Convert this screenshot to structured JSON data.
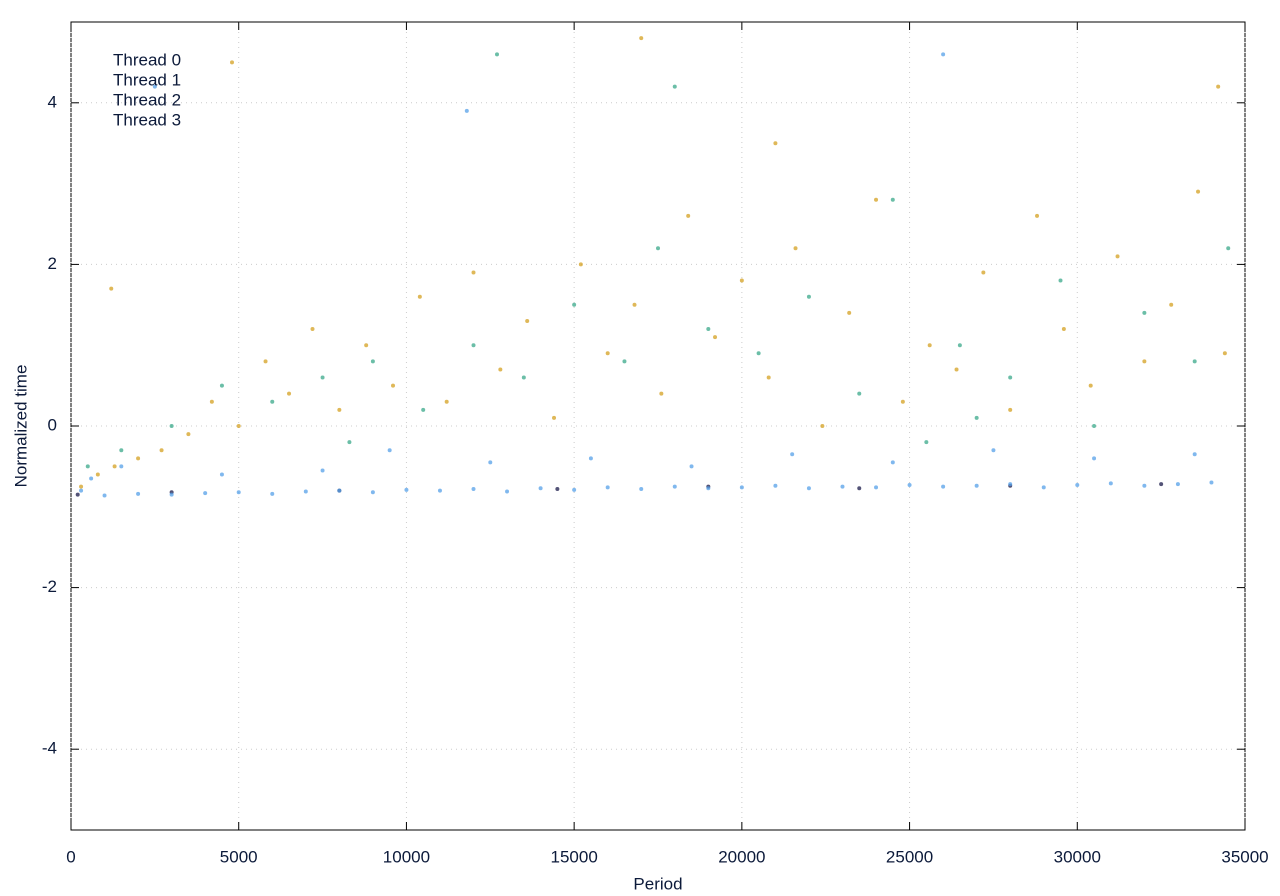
{
  "chart_data": {
    "type": "scatter",
    "x_label": "Period",
    "y_label": "Normalized time",
    "xlim": [
      0,
      35000
    ],
    "ylim": [
      -5,
      5
    ],
    "xticks": [
      0,
      5000,
      10000,
      15000,
      20000,
      25000,
      30000,
      35000
    ],
    "yticks": [
      -4,
      -2,
      0,
      2,
      4
    ],
    "grid": true,
    "legend": "upper-left",
    "series": [
      {
        "name": "Thread 0",
        "color": "#1a1a4a",
        "x": [
          200,
          3000,
          8000,
          14500,
          19000,
          23500,
          28000,
          32500
        ],
        "values": [
          -0.85,
          -0.82,
          -0.8,
          -0.78,
          -0.75,
          -0.77,
          -0.74,
          -0.72
        ]
      },
      {
        "name": "Thread 1",
        "color": "#56a0e8",
        "x": [
          1000,
          2000,
          3000,
          4000,
          5000,
          6000,
          7000,
          8000,
          9000,
          10000,
          11000,
          12000,
          13000,
          14000,
          15000,
          16000,
          17000,
          18000,
          19000,
          20000,
          21000,
          22000,
          23000,
          24000,
          25000,
          26000,
          27000,
          28000,
          29000,
          30000,
          31000,
          32000,
          33000,
          34000,
          1500,
          4500,
          7500,
          9500,
          12500,
          15500,
          18500,
          21500,
          24500,
          27500,
          30500,
          33500,
          2500,
          11800,
          26000,
          300,
          600
        ],
        "values": [
          -0.86,
          -0.84,
          -0.85,
          -0.83,
          -0.82,
          -0.84,
          -0.81,
          -0.8,
          -0.82,
          -0.79,
          -0.8,
          -0.78,
          -0.81,
          -0.77,
          -0.79,
          -0.76,
          -0.78,
          -0.75,
          -0.77,
          -0.76,
          -0.74,
          -0.77,
          -0.75,
          -0.76,
          -0.73,
          -0.75,
          -0.74,
          -0.72,
          -0.76,
          -0.73,
          -0.71,
          -0.74,
          -0.72,
          -0.7,
          -0.5,
          -0.6,
          -0.55,
          -0.3,
          -0.45,
          -0.4,
          -0.5,
          -0.35,
          -0.45,
          -0.3,
          -0.4,
          -0.35,
          4.2,
          3.9,
          4.6,
          -0.8,
          -0.65
        ]
      },
      {
        "name": "Thread 2",
        "color": "#3aa88a",
        "x": [
          500,
          1500,
          3000,
          4500,
          6000,
          7500,
          9000,
          10500,
          12000,
          13500,
          15000,
          16500,
          17500,
          19000,
          20500,
          22000,
          23500,
          24500,
          25500,
          26500,
          28000,
          29500,
          30500,
          32000,
          33500,
          34500,
          18000,
          12700,
          8300,
          27000
        ],
        "values": [
          -0.5,
          -0.3,
          0.0,
          0.5,
          0.3,
          0.6,
          0.8,
          0.2,
          1.0,
          0.6,
          1.5,
          0.8,
          2.2,
          1.2,
          0.9,
          1.6,
          0.4,
          2.8,
          -0.2,
          1.0,
          0.6,
          1.8,
          0.0,
          1.4,
          0.8,
          2.2,
          4.2,
          4.6,
          -0.2,
          0.1
        ]
      },
      {
        "name": "Thread 3",
        "color": "#d4a020",
        "x": [
          300,
          800,
          1300,
          2000,
          2700,
          3500,
          4200,
          5000,
          5800,
          6500,
          7200,
          8000,
          8800,
          9600,
          10400,
          11200,
          12000,
          12800,
          13600,
          14400,
          15200,
          16000,
          16800,
          17600,
          18400,
          19200,
          20000,
          20800,
          21600,
          22400,
          23200,
          24000,
          24800,
          25600,
          26400,
          27200,
          28000,
          28800,
          29600,
          30400,
          31200,
          32000,
          32800,
          33600,
          34400,
          1200,
          4800,
          17000,
          21000,
          34200
        ],
        "values": [
          -0.75,
          -0.6,
          -0.5,
          -0.4,
          -0.3,
          -0.1,
          0.3,
          0.0,
          0.8,
          0.4,
          1.2,
          0.2,
          1.0,
          0.5,
          1.6,
          0.3,
          1.9,
          0.7,
          1.3,
          0.1,
          2.0,
          0.9,
          1.5,
          0.4,
          2.6,
          1.1,
          1.8,
          0.6,
          2.2,
          0.0,
          1.4,
          2.8,
          0.3,
          1.0,
          0.7,
          1.9,
          0.2,
          2.6,
          1.2,
          0.5,
          2.1,
          0.8,
          1.5,
          2.9,
          0.9,
          1.7,
          4.5,
          4.8,
          3.5,
          4.2
        ]
      }
    ]
  }
}
